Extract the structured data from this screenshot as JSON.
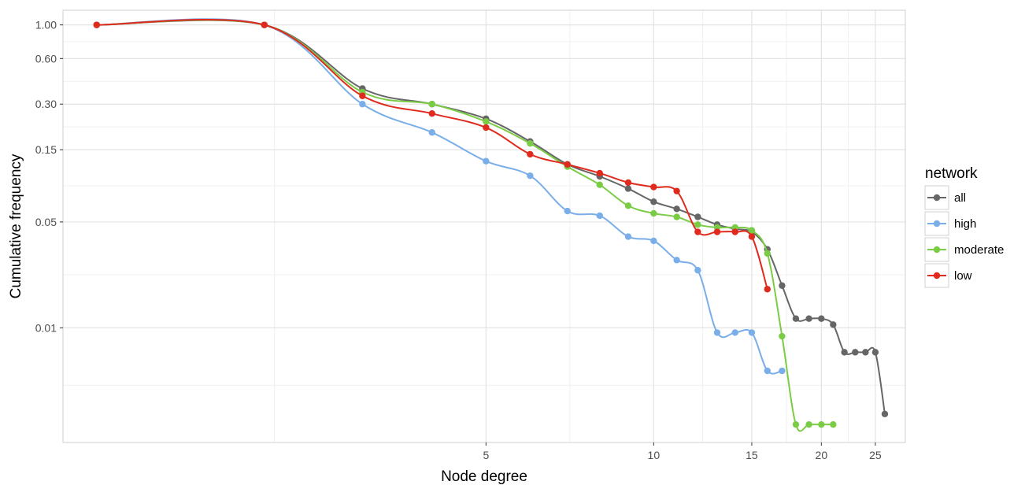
{
  "chart_data": {
    "type": "line",
    "title": "",
    "xlabel": "Node degree",
    "ylabel": "Cumulative frequency",
    "x_scale": "log",
    "y_scale": "log",
    "xlim": [
      0.87,
      28.3
    ],
    "ylim": [
      0.00175,
      1.25
    ],
    "x_ticks": [
      5,
      10,
      15,
      20,
      25
    ],
    "y_ticks": [
      1.0,
      0.6,
      0.3,
      0.15,
      0.05,
      0.01
    ],
    "y_tick_labels": [
      "1.00",
      "0.60",
      "0.30",
      "0.15",
      "0.05",
      "0.01"
    ],
    "grid": true,
    "legend": {
      "title": "network",
      "placement": "right"
    },
    "series": [
      {
        "name": "all",
        "color": "#666666",
        "x": [
          1,
          2,
          3,
          4,
          5,
          6,
          7,
          8,
          9,
          10,
          11,
          12,
          13,
          14,
          15,
          16,
          17,
          18,
          19,
          20,
          21,
          22,
          23,
          24,
          25,
          26
        ],
        "y": [
          1.0,
          1.0,
          0.38,
          0.3,
          0.24,
          0.17,
          0.12,
          0.1,
          0.083,
          0.068,
          0.061,
          0.054,
          0.048,
          0.045,
          0.043,
          0.033,
          0.019,
          0.0115,
          0.0115,
          0.0115,
          0.0105,
          0.0069,
          0.0069,
          0.0069,
          0.0069,
          0.0027
        ]
      },
      {
        "name": "high",
        "color": "#7aaee8",
        "x": [
          1,
          2,
          3,
          4,
          5,
          6,
          7,
          8,
          9,
          10,
          11,
          12,
          13,
          14,
          15,
          16,
          17
        ],
        "y": [
          1.0,
          1.0,
          0.3,
          0.195,
          0.126,
          0.101,
          0.059,
          0.055,
          0.04,
          0.0375,
          0.028,
          0.024,
          0.0093,
          0.0093,
          0.0093,
          0.0052,
          0.0052
        ]
      },
      {
        "name": "moderate",
        "color": "#7bcc45",
        "x": [
          1,
          2,
          3,
          4,
          5,
          6,
          7,
          8,
          9,
          10,
          11,
          12,
          13,
          14,
          15,
          16,
          17,
          18,
          19,
          20,
          21
        ],
        "y": [
          1.0,
          1.0,
          0.36,
          0.3,
          0.23,
          0.165,
          0.116,
          0.088,
          0.064,
          0.057,
          0.054,
          0.048,
          0.046,
          0.046,
          0.044,
          0.031,
          0.0088,
          0.0023,
          0.0023,
          0.0023,
          0.0023
        ]
      },
      {
        "name": "low",
        "color": "#e02a1d",
        "x": [
          1,
          2,
          3,
          4,
          5,
          6,
          7,
          8,
          9,
          10,
          11,
          12,
          13,
          14,
          15,
          16
        ],
        "y": [
          1.0,
          1.0,
          0.34,
          0.26,
          0.21,
          0.14,
          0.12,
          0.105,
          0.091,
          0.085,
          0.08,
          0.043,
          0.043,
          0.043,
          0.04,
          0.018
        ]
      }
    ]
  }
}
